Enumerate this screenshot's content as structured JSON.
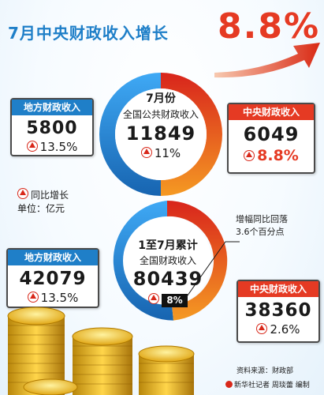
{
  "title": "7月中央财政收入增长",
  "headline": "8.8%",
  "july": {
    "center_period": "7月份",
    "center_label": "全国公共财政收入",
    "center_value": "11849",
    "center_growth": "11%",
    "local": {
      "label": "地方财政收入",
      "value": "5800",
      "growth": "13.5%"
    },
    "central": {
      "label": "中央财政收入",
      "value": "6049",
      "growth": "8.8%"
    }
  },
  "legend": {
    "growth": "同比增长",
    "unit": "单位：亿元"
  },
  "ytd": {
    "center_period": "1至7月累计",
    "center_label": "全国财政收入",
    "center_value": "80439",
    "center_growth": "8%",
    "local": {
      "label": "地方财政收入",
      "value": "42079",
      "growth": "13.5%"
    },
    "central": {
      "label": "中央财政收入",
      "value": "38360",
      "growth": "2.6%"
    }
  },
  "note": {
    "line1": "增幅同比回落",
    "line2": "3.6个百分点"
  },
  "source": "资料来源：财政部",
  "credit": "新华社记者 周琰蕾 编制",
  "colors": {
    "blue": "#1f7fc8",
    "red": "#e53a23",
    "orange": "#f07a22"
  },
  "icons": [
    "up-triangle-icon",
    "xinhua-logo-icon",
    "coins-stack-icon",
    "curved-arrow-icon"
  ]
}
